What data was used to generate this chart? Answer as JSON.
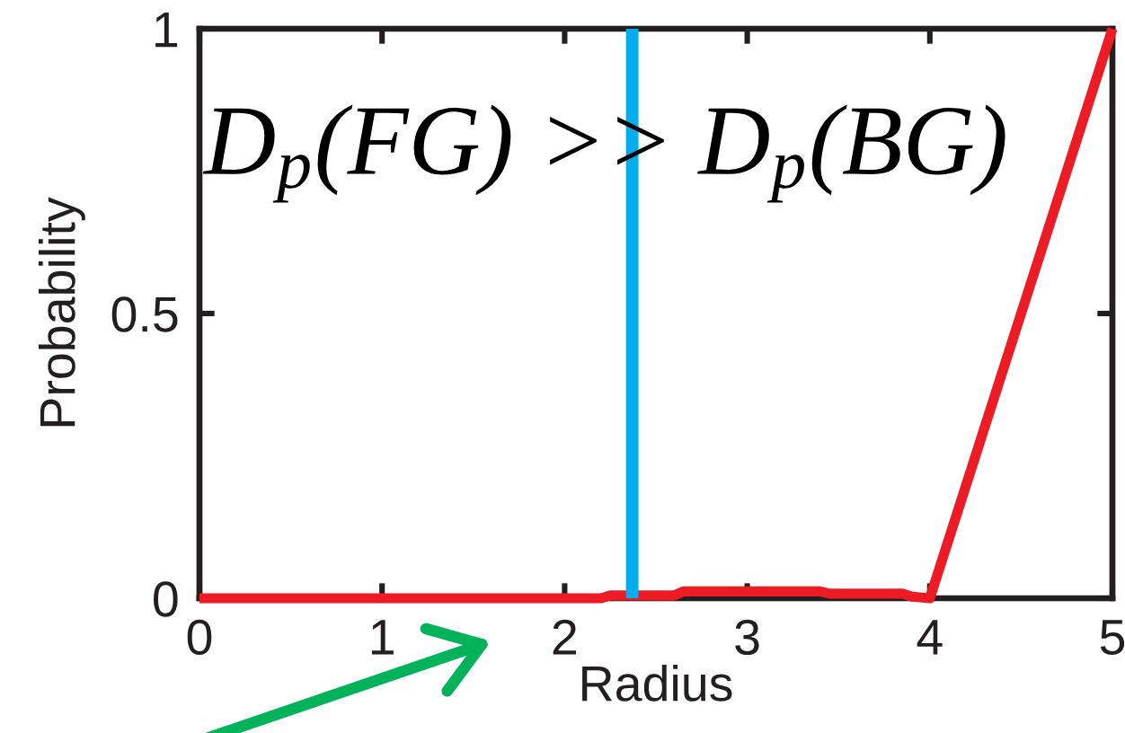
{
  "chart_data": {
    "type": "line",
    "xlabel": "Radius",
    "ylabel": "Probability",
    "x": [
      0,
      2.2,
      2.25,
      2.6,
      2.65,
      3.4,
      3.45,
      3.85,
      3.9,
      4.0,
      5
    ],
    "series": [
      {
        "color": "#ed1c24",
        "values": [
          0,
          0,
          0.005,
          0.005,
          0.012,
          0.012,
          0.008,
          0.008,
          0.003,
          0,
          1
        ]
      }
    ],
    "xlim": [
      0,
      5
    ],
    "ylim": [
      0,
      1
    ],
    "xticks": [
      0,
      1,
      2,
      3,
      4,
      5
    ],
    "yticks": [
      0,
      0.5,
      1
    ],
    "ref_lines": [
      {
        "axis": "x",
        "value": 2.37,
        "color": "#00aeef"
      }
    ],
    "annotations": [
      "D$_{p}$(FG) >> D$_{p}$(BG)"
    ],
    "grid": false,
    "legend": false
  }
}
